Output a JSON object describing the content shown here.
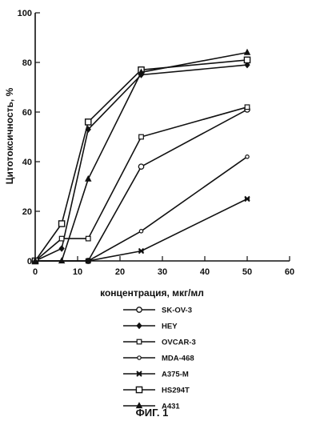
{
  "chart_data": {
    "type": "line",
    "xlabel": "концентрация, мкг/мл",
    "ylabel": "Цитотоксичность, %",
    "xlim": [
      0,
      60
    ],
    "ylim": [
      0,
      100
    ],
    "xticks": [
      "0",
      "10",
      "20",
      "30",
      "40",
      "50",
      "60"
    ],
    "yticks": [
      "0",
      "20",
      "40",
      "60",
      "80",
      "100"
    ],
    "grid": false,
    "legend_position": "bottom",
    "caption": "ФИГ. 1",
    "series": [
      {
        "name": "SK-OV-3",
        "marker": "circle-open",
        "x": [
          0,
          12.5,
          25,
          50
        ],
        "y": [
          0,
          0,
          38,
          61
        ]
      },
      {
        "name": "HEY",
        "marker": "diamond",
        "x": [
          0,
          6.25,
          12.5,
          25,
          50
        ],
        "y": [
          0,
          5,
          53,
          75,
          79
        ]
      },
      {
        "name": "OVCAR-3",
        "marker": "square-small",
        "x": [
          0,
          6.25,
          12.5,
          25,
          50
        ],
        "y": [
          0,
          9,
          9,
          50,
          62
        ]
      },
      {
        "name": "MDA-468",
        "marker": "circle-small",
        "x": [
          0,
          12.5,
          25,
          50
        ],
        "y": [
          0,
          0,
          12,
          42
        ]
      },
      {
        "name": "A375-M",
        "marker": "x-mark",
        "x": [
          0,
          12.5,
          25,
          50
        ],
        "y": [
          0,
          0,
          4,
          25
        ]
      },
      {
        "name": "HS294T",
        "marker": "square-open",
        "x": [
          0,
          6.25,
          12.5,
          25,
          50
        ],
        "y": [
          0,
          15,
          56,
          77,
          81
        ]
      },
      {
        "name": "A431",
        "marker": "triangle",
        "x": [
          0,
          6.25,
          12.5,
          25,
          50
        ],
        "y": [
          0,
          0,
          33,
          76,
          84
        ]
      }
    ]
  }
}
